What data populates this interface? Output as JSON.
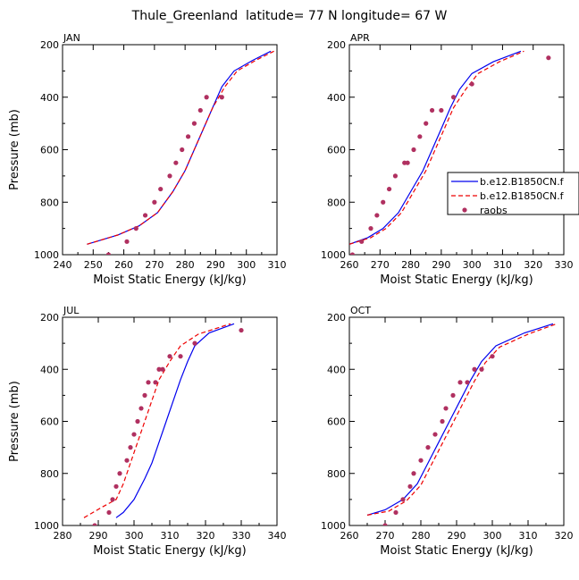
{
  "title": "Thule_Greenland  latitude= 77 N longitude= 67 W",
  "colors": {
    "model1": "#0000ee",
    "model2": "#ee0000",
    "raobs": "#b03060"
  },
  "legend": {
    "entries": [
      {
        "label": "b.e12.B1850CN.f",
        "style": "solid-blue-line"
      },
      {
        "label": "b.e12.B1850CN.f",
        "style": "dashed-red-line"
      },
      {
        "label": "raobs",
        "style": "dot-marker"
      }
    ]
  },
  "chart_data": [
    {
      "type": "line",
      "panel": "JAN",
      "xlabel": "Moist Static Energy (kJ/kg)",
      "ylabel": "Pressure (mb)",
      "xlim": [
        240,
        310
      ],
      "xticks": [
        240,
        250,
        260,
        270,
        280,
        290,
        300,
        310
      ],
      "ylim": [
        1000,
        200
      ],
      "yticks": [
        1000,
        800,
        600,
        400,
        200
      ],
      "series": [
        {
          "name": "b.e12.B1850CN.f",
          "style": "solid",
          "x": [
            248,
            258,
            265,
            271,
            276,
            280,
            283,
            286,
            289,
            292,
            296,
            302,
            308
          ],
          "y": [
            960,
            925,
            890,
            840,
            760,
            680,
            600,
            520,
            440,
            360,
            300,
            260,
            225
          ]
        },
        {
          "name": "b.e12.B1850CN.f",
          "style": "dashed",
          "x": [
            248,
            258,
            265,
            271,
            276,
            280,
            283,
            286,
            289,
            293,
            297,
            303,
            309
          ],
          "y": [
            960,
            925,
            890,
            840,
            760,
            680,
            600,
            520,
            440,
            360,
            300,
            260,
            225
          ]
        },
        {
          "name": "raobs",
          "style": "dots",
          "x": [
            255,
            261,
            264,
            267,
            270,
            272,
            275,
            277,
            279,
            281,
            283,
            285,
            287,
            292
          ],
          "y": [
            1000,
            950,
            900,
            850,
            800,
            750,
            700,
            650,
            600,
            550,
            500,
            450,
            400,
            400
          ]
        }
      ]
    },
    {
      "type": "line",
      "panel": "APR",
      "xlabel": "Moist Static Energy (kJ/kg)",
      "ylabel": "",
      "xlim": [
        260,
        330
      ],
      "xticks": [
        260,
        270,
        280,
        290,
        300,
        310,
        320,
        330
      ],
      "ylim": [
        1000,
        200
      ],
      "yticks": [
        1000,
        800,
        600,
        400,
        200
      ],
      "series": [
        {
          "name": "b.e12.B1850CN.f",
          "style": "solid",
          "x": [
            260,
            266,
            271,
            276,
            280,
            284,
            287,
            290,
            293,
            296,
            300,
            307,
            316
          ],
          "y": [
            960,
            935,
            900,
            840,
            760,
            680,
            600,
            520,
            440,
            370,
            310,
            265,
            225
          ]
        },
        {
          "name": "b.e12.B1850CN.f",
          "style": "dashed",
          "x": [
            260,
            267,
            272,
            277,
            281,
            285,
            288,
            291,
            294,
            298,
            302,
            309,
            317
          ],
          "y": [
            960,
            935,
            900,
            840,
            760,
            680,
            600,
            520,
            440,
            370,
            310,
            265,
            225
          ]
        },
        {
          "name": "raobs",
          "style": "dots",
          "x": [
            261,
            264,
            267,
            269,
            271,
            273,
            275,
            278,
            279,
            281,
            283,
            285,
            287,
            290,
            294,
            300,
            325
          ],
          "y": [
            1000,
            950,
            900,
            850,
            800,
            750,
            700,
            650,
            650,
            600,
            550,
            500,
            450,
            450,
            400,
            350,
            250
          ]
        }
      ]
    },
    {
      "type": "line",
      "panel": "JUL",
      "xlabel": "Moist Static Energy (kJ/kg)",
      "ylabel": "Pressure (mb)",
      "xlim": [
        280,
        340
      ],
      "xticks": [
        280,
        290,
        300,
        310,
        320,
        330,
        340
      ],
      "ylim": [
        1000,
        200
      ],
      "yticks": [
        1000,
        800,
        600,
        400,
        200
      ],
      "series": [
        {
          "name": "b.e12.B1850CN.f",
          "style": "solid",
          "x": [
            295,
            297,
            300,
            303,
            305,
            307,
            309,
            311,
            313,
            315,
            317,
            321,
            328
          ],
          "y": [
            970,
            950,
            900,
            820,
            760,
            680,
            600,
            520,
            440,
            370,
            310,
            260,
            225
          ]
        },
        {
          "name": "b.e12.B1850CN.f",
          "style": "dashed",
          "x": [
            286,
            291,
            295,
            297,
            299,
            301,
            303,
            305,
            307,
            310,
            313,
            318,
            327
          ],
          "y": [
            970,
            930,
            900,
            840,
            760,
            680,
            600,
            520,
            440,
            370,
            310,
            265,
            225
          ]
        },
        {
          "name": "raobs",
          "style": "dots",
          "x": [
            289,
            293,
            294,
            295,
            296,
            298,
            299,
            300,
            301,
            302,
            303,
            304,
            306,
            307,
            308,
            310,
            313,
            317,
            330
          ],
          "y": [
            1000,
            950,
            900,
            850,
            800,
            750,
            700,
            650,
            600,
            550,
            500,
            450,
            450,
            400,
            400,
            350,
            350,
            300,
            250
          ]
        }
      ]
    },
    {
      "type": "line",
      "panel": "OCT",
      "xlabel": "Moist Static Energy (kJ/kg)",
      "ylabel": "",
      "xlim": [
        260,
        320
      ],
      "xticks": [
        260,
        270,
        280,
        290,
        300,
        310,
        320
      ],
      "ylim": [
        1000,
        200
      ],
      "yticks": [
        1000,
        800,
        600,
        400,
        200
      ],
      "series": [
        {
          "name": "b.e12.B1850CN.f",
          "style": "solid",
          "x": [
            265,
            270,
            275,
            279,
            282,
            285,
            288,
            291,
            294,
            297,
            301,
            309,
            317
          ],
          "y": [
            960,
            940,
            900,
            840,
            760,
            680,
            600,
            520,
            440,
            370,
            310,
            260,
            225
          ]
        },
        {
          "name": "b.e12.B1850CN.f",
          "style": "dashed",
          "x": [
            265,
            271,
            276,
            280,
            283,
            286,
            289,
            292,
            295,
            298,
            302,
            310,
            318
          ],
          "y": [
            960,
            945,
            905,
            845,
            765,
            685,
            605,
            525,
            445,
            375,
            315,
            265,
            225
          ]
        },
        {
          "name": "raobs",
          "style": "dots",
          "x": [
            270,
            273,
            275,
            277,
            278,
            280,
            282,
            284,
            286,
            287,
            289,
            291,
            293,
            295,
            297,
            300
          ],
          "y": [
            1000,
            950,
            900,
            850,
            800,
            750,
            700,
            650,
            600,
            550,
            500,
            450,
            450,
            400,
            400,
            350
          ]
        }
      ]
    }
  ]
}
